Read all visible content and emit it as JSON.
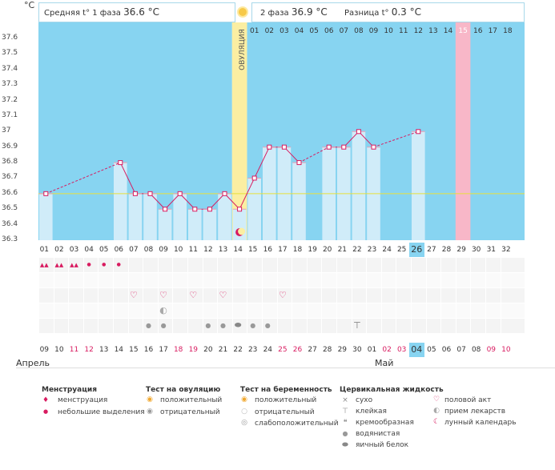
{
  "unit_label": "°C",
  "header": {
    "phase1_label": "Средняя t° 1 фаза",
    "phase1_value": "36.6 °C",
    "phase2_label": "2 фаза",
    "phase2_value": "36.9 °C",
    "diff_label": "Разница t°",
    "diff_value": "0.3 °C"
  },
  "ovulation_label": "ОВУЛЯЦИЯ",
  "colors": {
    "sky": "#87d4f1",
    "bar": "#d0ecf9",
    "ovulation": "#fbeea2",
    "marker": "#e5a0b5",
    "line": "#d81b60",
    "avg": "#e8e03c",
    "day26": "#87d4f1"
  },
  "chart_data": {
    "type": "line",
    "ylim": [
      36.3,
      37.6
    ],
    "ytick_labels": [
      "37.6",
      "37.5",
      "37.4",
      "37.3",
      "37.2",
      "37.1",
      "37",
      "36.9",
      "36.8",
      "36.7",
      "36.6",
      "36.5",
      "36.4",
      "36.3"
    ],
    "average_line": 36.6,
    "cycle_days": [
      "01",
      "02",
      "03",
      "04",
      "05",
      "06",
      "07",
      "08",
      "09",
      "10",
      "11",
      "12",
      "13",
      "14",
      "15",
      "16",
      "17",
      "18",
      "19",
      "20",
      "21",
      "22",
      "23",
      "24",
      "25",
      "26",
      "27",
      "28",
      "29",
      "30",
      "31",
      "32"
    ],
    "phase2_days": [
      "01",
      "02",
      "03",
      "04",
      "05",
      "06",
      "07",
      "08",
      "09",
      "10",
      "11",
      "12",
      "13",
      "14",
      "15",
      "16",
      "17",
      "18"
    ],
    "current_day": "26",
    "highlight_phase2_day": "15",
    "ovulation_day": 14,
    "bar_days": [
      1,
      6,
      7,
      8,
      9,
      10,
      11,
      12,
      13,
      14,
      15,
      16,
      17,
      18,
      20,
      21,
      22,
      23,
      26
    ],
    "points": [
      {
        "day": 1,
        "temp": 36.6
      },
      {
        "day": 6,
        "temp": 36.8
      },
      {
        "day": 7,
        "temp": 36.6
      },
      {
        "day": 8,
        "temp": 36.6
      },
      {
        "day": 9,
        "temp": 36.5
      },
      {
        "day": 10,
        "temp": 36.6
      },
      {
        "day": 11,
        "temp": 36.5
      },
      {
        "day": 12,
        "temp": 36.5
      },
      {
        "day": 13,
        "temp": 36.6
      },
      {
        "day": 14,
        "temp": 36.5
      },
      {
        "day": 15,
        "temp": 36.7
      },
      {
        "day": 16,
        "temp": 36.9
      },
      {
        "day": 17,
        "temp": 36.9
      },
      {
        "day": 18,
        "temp": 36.8
      },
      {
        "day": 20,
        "temp": 36.9
      },
      {
        "day": 21,
        "temp": 36.9
      },
      {
        "day": 22,
        "temp": 37.0
      },
      {
        "day": 23,
        "temp": 36.9
      },
      {
        "day": 26,
        "temp": 37.0
      }
    ],
    "dashed_segments": [
      [
        1,
        6
      ],
      [
        18,
        20
      ],
      [
        23,
        26
      ]
    ]
  },
  "calendar": {
    "dates": [
      "09",
      "10",
      "11",
      "12",
      "13",
      "14",
      "15",
      "16",
      "17",
      "18",
      "19",
      "20",
      "21",
      "22",
      "23",
      "24",
      "25",
      "26",
      "27",
      "28",
      "29",
      "30",
      "01",
      "02",
      "03",
      "04",
      "05",
      "06",
      "07",
      "08",
      "09",
      "10"
    ],
    "red_dates": [
      2,
      3,
      9,
      10,
      16,
      17,
      23,
      24,
      30,
      31
    ],
    "highlight_index": 25,
    "month_april": "Апрель",
    "month_may": "Май"
  },
  "rows": {
    "menstruation": [
      1,
      2,
      3,
      4,
      5,
      6
    ],
    "heavy_menstruation": [
      1,
      2,
      3
    ],
    "intercourse": [
      7,
      9,
      11,
      13,
      17
    ],
    "medicine": [
      9
    ],
    "cervical_watery": [
      8,
      9,
      12,
      13,
      15,
      16
    ],
    "cervical_eggwhite": [
      14
    ],
    "cervical_sticky": [
      22
    ],
    "moon_day": 14
  },
  "legend": {
    "menstruation": {
      "title": "Менструация",
      "items": [
        "менструация",
        "небольшие выделения"
      ]
    },
    "ovulation_test": {
      "title": "Тест на овуляцию",
      "items": [
        "положительный",
        "отрицательный"
      ]
    },
    "pregnancy_test": {
      "title": "Тест на беременность",
      "items": [
        "положительный",
        "отрицательный",
        "слабоположительный"
      ]
    },
    "cervical": {
      "title": "Цервикальная жидкость",
      "items": [
        "сухо",
        "клейкая",
        "кремообразная",
        "водянистая",
        "яичный белок"
      ]
    },
    "other": {
      "items": [
        "половой акт",
        "прием лекарств",
        "лунный календарь"
      ]
    }
  }
}
